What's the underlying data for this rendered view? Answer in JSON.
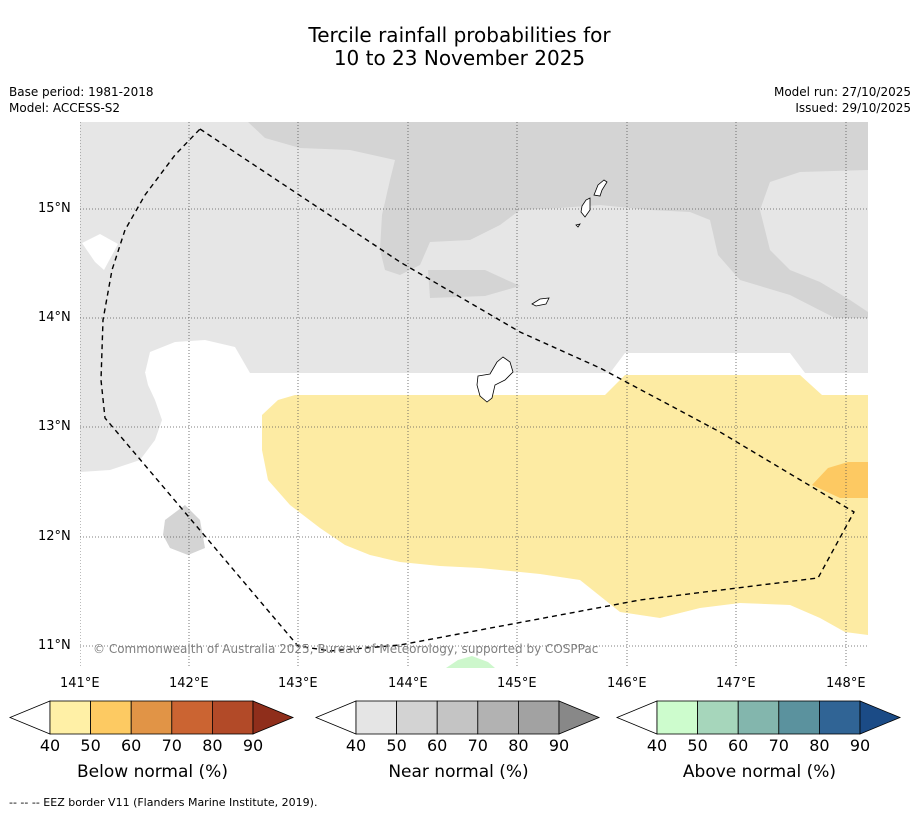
{
  "title": {
    "line1": "Tercile rainfall probabilities for",
    "line2": "10 to 23 November 2025"
  },
  "meta_left": {
    "base_period": "Base period: 1981-2018",
    "model": "Model: ACCESS-S2"
  },
  "meta_right": {
    "model_run": "Model run: 27/10/2025",
    "issued": "Issued: 29/10/2025"
  },
  "map": {
    "lat_labels": [
      "15°N",
      "14°N",
      "13°N",
      "12°N",
      "11°N"
    ],
    "lon_labels": [
      "141°E",
      "142°E",
      "143°E",
      "144°E",
      "145°E",
      "146°E",
      "147°E",
      "148°E"
    ],
    "credit": "© Commonwealth of Australia 2025, Bureau of Meteorology, supported by COSPPac",
    "colors": {
      "near_40": "#e6e6e6",
      "near_50": "#d4d4d4",
      "below_40": "#fdeba3",
      "below_50": "#fdc962",
      "above_40": "#cdf7cc"
    }
  },
  "colorbars": [
    {
      "label": "Below normal (%)",
      "ticks": [
        "40",
        "50",
        "60",
        "70",
        "80",
        "90"
      ],
      "colors": [
        "#fff0a6",
        "#fdca62",
        "#e19446",
        "#cb6432",
        "#b24a28",
        "#8f2e1b"
      ]
    },
    {
      "label": "Near normal (%)",
      "ticks": [
        "40",
        "50",
        "60",
        "70",
        "80",
        "90"
      ],
      "colors": [
        "#e5e5e5",
        "#d3d3d3",
        "#c4c4c4",
        "#b2b2b2",
        "#a2a2a2",
        "#888888"
      ]
    },
    {
      "label": "Above normal (%)",
      "ticks": [
        "40",
        "50",
        "60",
        "70",
        "80",
        "90"
      ],
      "colors": [
        "#cdfccd",
        "#a6d6bb",
        "#83b6ad",
        "#5b929e",
        "#306495",
        "#1b4b86"
      ]
    }
  ],
  "footer": "--  --  -- EEZ border V11 (Flanders Marine Institute, 2019)."
}
